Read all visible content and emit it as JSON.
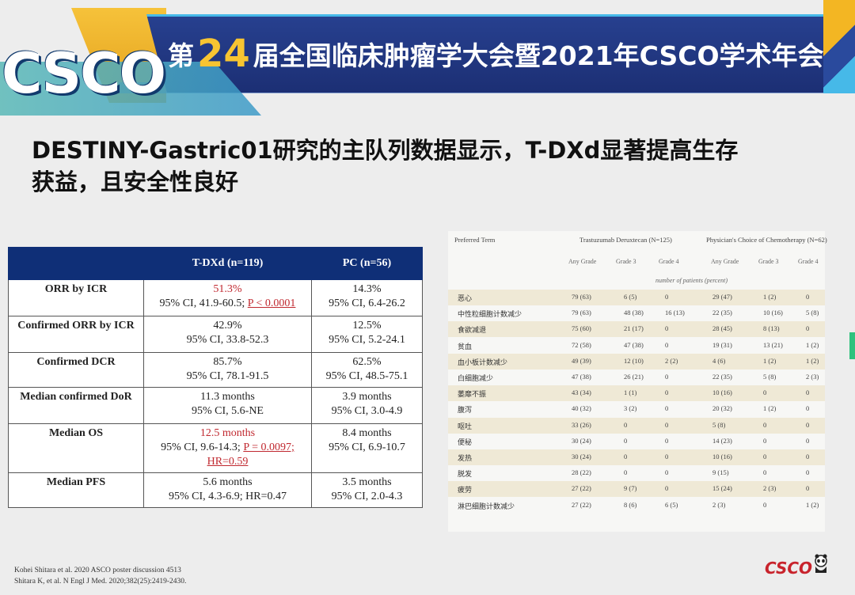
{
  "banner": {
    "logo_text": "CSCO",
    "title_prefix": "第",
    "title_number": "24",
    "title_suffix": "届全国临床肿瘤学大会暨2021年CSCO学术年会"
  },
  "slide": {
    "heading_line1": "DESTINY-Gastric01研究的主队列数据显示，T-DXd显著提高生存",
    "heading_line2": "获益，且安全性良好"
  },
  "efficacy_table": {
    "headers": [
      "",
      "T-DXd (n=119)",
      "PC (n=56)"
    ],
    "rows": [
      {
        "label": "ORR by ICR",
        "tdxd_l1": "51.3%",
        "tdxd_l2a": "95% CI, 41.9-60.5; ",
        "tdxd_l2b": "P < 0.0001",
        "pc_l1": "14.3%",
        "pc_l2": "95% CI, 6.4-26.2"
      },
      {
        "label": "Confirmed ORR by ICR",
        "tdxd_l1": "42.9%",
        "tdxd_l2": "95% CI, 33.8-52.3",
        "pc_l1": "12.5%",
        "pc_l2": "95% CI, 5.2-24.1"
      },
      {
        "label": "Confirmed DCR",
        "tdxd_l1": "85.7%",
        "tdxd_l2": "95% CI, 78.1-91.5",
        "pc_l1": "62.5%",
        "pc_l2": "95% CI, 48.5-75.1"
      },
      {
        "label": "Median confirmed DoR",
        "tdxd_l1": "11.3 months",
        "tdxd_l2": "95% CI, 5.6-NE",
        "pc_l1": "3.9 months",
        "pc_l2": "95% CI, 3.0-4.9"
      },
      {
        "label": "Median OS",
        "tdxd_l1": "12.5 months",
        "tdxd_l2a": "95% CI, 9.6-14.3; ",
        "tdxd_l2b": "P = 0.0097;",
        "tdxd_l3": "HR=0.59",
        "pc_l1": "8.4 months",
        "pc_l2": "95% CI, 6.9-10.7"
      },
      {
        "label": "Median PFS",
        "tdxd_l1": "5.6 months",
        "tdxd_l2": "95% CI, 4.3-6.9; HR=0.47",
        "pc_l1": "3.5 months",
        "pc_l2": "95% CI, 2.0-4.3"
      }
    ]
  },
  "ae_table": {
    "preferred_term": "Preferred Term",
    "group1": "Trastuzumab Deruxtecan (N=125)",
    "group2": "Physician's Choice of Chemotherapy (N=62)",
    "subheaders": [
      "Any Grade",
      "Grade 3",
      "Grade 4",
      "Any Grade",
      "Grade 3",
      "Grade 4"
    ],
    "unit_note": "number of patients (percent)",
    "rows": [
      {
        "term": "恶心",
        "v": [
          "79 (63)",
          "6 (5)",
          "0",
          "29 (47)",
          "1 (2)",
          "0"
        ]
      },
      {
        "term": "中性粒细胞计数减少",
        "v": [
          "79 (63)",
          "48 (38)",
          "16 (13)",
          "22 (35)",
          "10 (16)",
          "5 (8)"
        ]
      },
      {
        "term": "食欲减退",
        "v": [
          "75 (60)",
          "21 (17)",
          "0",
          "28 (45)",
          "8 (13)",
          "0"
        ]
      },
      {
        "term": "贫血",
        "v": [
          "72 (58)",
          "47 (38)",
          "0",
          "19 (31)",
          "13 (21)",
          "1 (2)"
        ]
      },
      {
        "term": "血小板计数减少",
        "v": [
          "49 (39)",
          "12 (10)",
          "2 (2)",
          "4 (6)",
          "1 (2)",
          "1 (2)"
        ]
      },
      {
        "term": "白细胞减少",
        "v": [
          "47 (38)",
          "26 (21)",
          "0",
          "22 (35)",
          "5 (8)",
          "2 (3)"
        ]
      },
      {
        "term": "萎靡不振",
        "v": [
          "43 (34)",
          "1 (1)",
          "0",
          "10 (16)",
          "0",
          "0"
        ]
      },
      {
        "term": "腹泻",
        "v": [
          "40 (32)",
          "3 (2)",
          "0",
          "20 (32)",
          "1 (2)",
          "0"
        ]
      },
      {
        "term": "呕吐",
        "v": [
          "33 (26)",
          "0",
          "0",
          "5 (8)",
          "0",
          "0"
        ]
      },
      {
        "term": "便秘",
        "v": [
          "30 (24)",
          "0",
          "0",
          "14 (23)",
          "0",
          "0"
        ]
      },
      {
        "term": "发热",
        "v": [
          "30 (24)",
          "0",
          "0",
          "10 (16)",
          "0",
          "0"
        ]
      },
      {
        "term": "脱发",
        "v": [
          "28 (22)",
          "0",
          "0",
          "9 (15)",
          "0",
          "0"
        ]
      },
      {
        "term": "疲劳",
        "v": [
          "27 (22)",
          "9 (7)",
          "0",
          "15 (24)",
          "2 (3)",
          "0"
        ]
      },
      {
        "term": "淋巴细胞计数减少",
        "v": [
          "27 (22)",
          "8 (6)",
          "6 (5)",
          "2 (3)",
          "0",
          "1 (2)"
        ]
      }
    ]
  },
  "references": {
    "line1": "Kohei Shitara et al. 2020 ASCO poster discussion 4513",
    "line2": "Shitara K, et al. N Engl J Med. 2020;382(25):2419-2430."
  },
  "footer_logo": "CSCO"
}
